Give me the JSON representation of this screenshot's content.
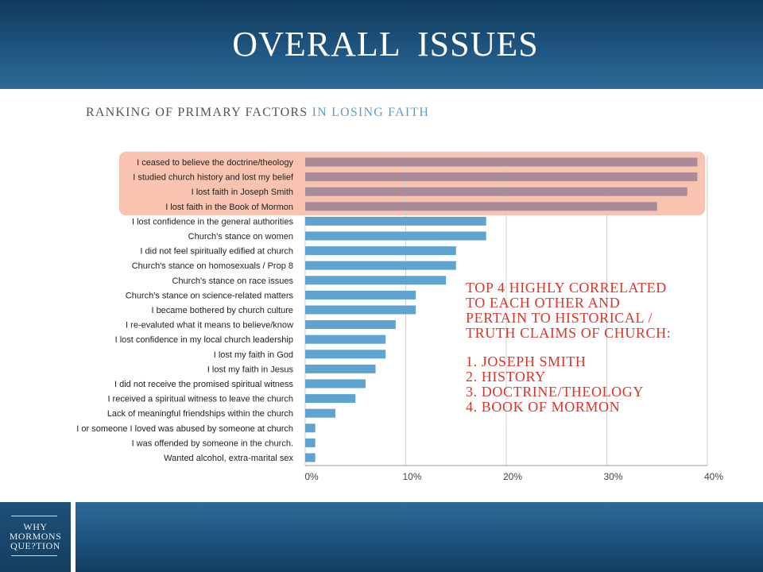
{
  "header": {
    "title": "OVERALL  ISSUES"
  },
  "subtitle": {
    "part1": "RANKING OF PRIMARY FACTORS",
    "part2": " IN LOSING FAITH"
  },
  "logo": {
    "line1": "WHY",
    "line2": "MORMONS",
    "line3": "QUE?TION"
  },
  "annotation": {
    "heading": [
      "TOP 4 HIGHLY CORRELATED",
      "TO EACH OTHER AND",
      "PERTAIN TO HISTORICAL /",
      "TRUTH CLAIMS OF CHURCH:"
    ],
    "items": [
      "1. JOSEPH SMITH",
      "2. HISTORY",
      "3. DOCTRINE/THEOLOGY",
      "4.  BOOK OF MORMON"
    ]
  },
  "chart_data": {
    "type": "bar",
    "orientation": "horizontal",
    "title": "RANKING OF PRIMARY FACTORS IN LOSING FAITH",
    "xlim": [
      0,
      40
    ],
    "x_ticks": [
      "0%",
      "10%",
      "20%",
      "30%",
      "40%"
    ],
    "grid": true,
    "categories": [
      "I ceased to believe the doctrine/theology",
      "I studied church history and lost my belief",
      "I lost faith in Joseph Smith",
      "I lost faith in the Book of Mormon",
      "I lost confidence in the general authorities",
      "Church's stance on women",
      "I did not feel spiritually edified at church",
      "Church's stance on homosexuals / Prop 8",
      "Church's stance on race issues",
      "Church's stance on science-related matters",
      "I became bothered by church culture",
      "I re-evaluted what it means to believe/know",
      "I lost confidence in my local church leadership",
      "I lost my faith in God",
      "I lost my faith in Jesus",
      "I did not receive the promised spiritual witness",
      "I received a spiritual witness to leave the church",
      "Lack of meaningful friendships within the church",
      "I or someone I loved was abused by someone at church",
      "I was offended by someone in the church.",
      "Wanted alcohol, extra-marital sex"
    ],
    "values": [
      39,
      39,
      38,
      35,
      18,
      18,
      15,
      15,
      14,
      11,
      11,
      9,
      8,
      8,
      7,
      6,
      5,
      3,
      1,
      1,
      1
    ],
    "highlight_top": 4,
    "colors": {
      "highlight_bar": "#a98a98",
      "bar": "#5fa3d1",
      "highlight_bg": "#f8c3b0",
      "grid": "#cfcfcf"
    }
  }
}
